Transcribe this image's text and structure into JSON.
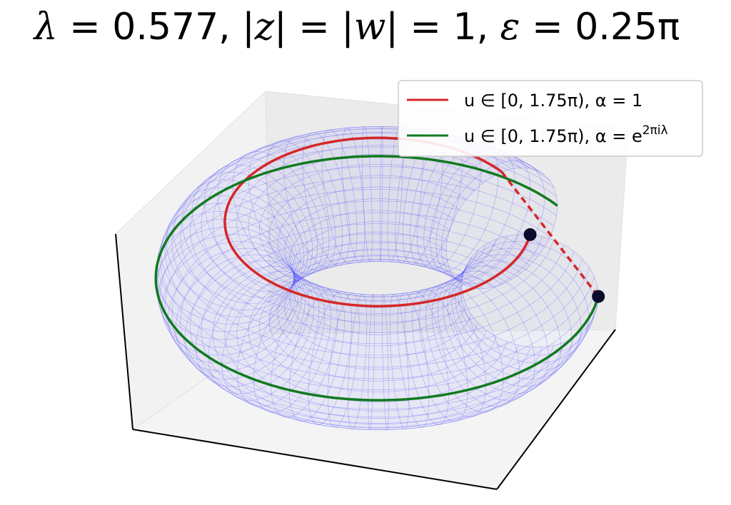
{
  "title": {
    "lambda_symbol": "λ",
    "lambda_value": "0.577",
    "z": "z",
    "w": "w",
    "modulus_value": "1",
    "epsilon_symbol": "ε",
    "epsilon_value": "0.25π"
  },
  "legend": {
    "placement": "top-right",
    "entries": [
      {
        "prefix": "u ∈ [0, 1.75π), α = ",
        "suffix": "1",
        "superscript": "",
        "color": "#d62728"
      },
      {
        "prefix": "u ∈ [0, 1.75π), α = ",
        "suffix": "e",
        "superscript": "2πiλ",
        "color": "#117a1f"
      }
    ]
  },
  "chart_data": {
    "type": "surface3d",
    "surface": "torus",
    "surface_color": "#3333ff",
    "surface_u_range": [
      0,
      1.75
    ],
    "surface_u_unit": "π",
    "lambda": 0.577,
    "epsilon": 0.25,
    "abs_z": 1,
    "abs_w": 1,
    "series": [
      {
        "name": "u ∈ [0, 1.75π), α = 1",
        "color": "#d62728",
        "u_range": [
          0,
          1.75
        ],
        "alpha": "1"
      },
      {
        "name": "u ∈ [0, 1.75π), α = e^{2πiλ}",
        "color": "#117a1f",
        "u_range": [
          0,
          1.75
        ],
        "alpha": "e^{2πiλ}"
      }
    ],
    "grid": false,
    "axes_tick_labels": false
  }
}
